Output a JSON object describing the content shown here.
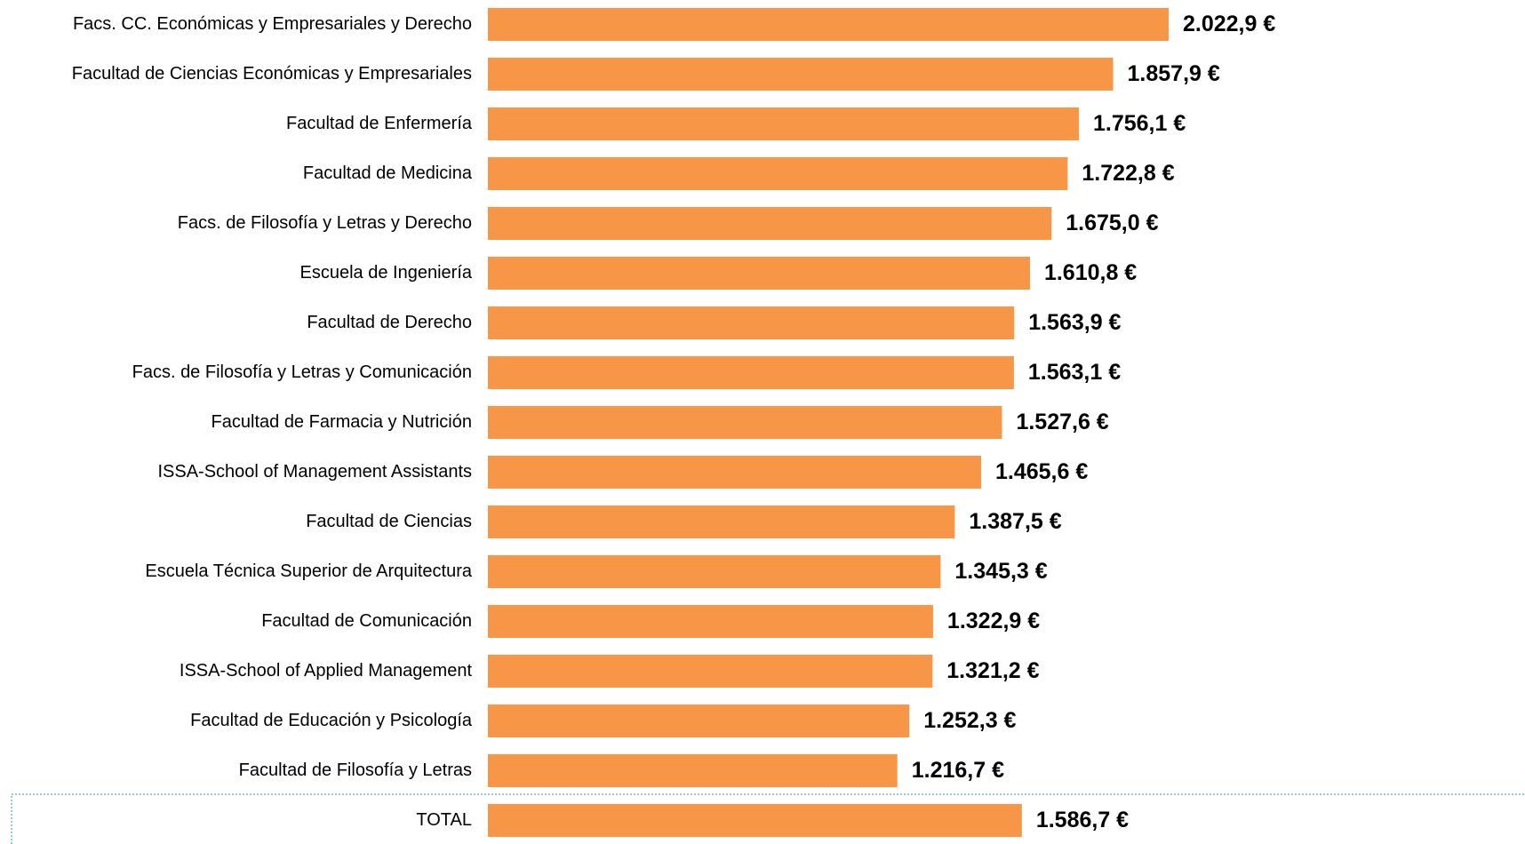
{
  "chart_data": {
    "type": "bar",
    "orientation": "horizontal",
    "color": "#f79646",
    "categories": [
      "Facs. CC. Económicas y Empresariales y Derecho",
      "Facultad de Ciencias Económicas y Empresariales",
      "Facultad de Enfermería",
      "Facultad de Medicina",
      "Facs. de Filosofía y Letras y Derecho",
      "Escuela de Ingeniería",
      "Facultad de Derecho",
      "Facs. de Filosofía y Letras y Comunicación",
      "Facultad de Farmacia y Nutrición",
      "ISSA-School of Management Assistants",
      "Facultad de Ciencias",
      "Escuela Técnica Superior de Arquitectura",
      "Facultad de Comunicación",
      "ISSA-School of Applied Management",
      "Facultad de Educación y Psicología",
      "Facultad de Filosofía y Letras",
      "TOTAL"
    ],
    "values": [
      2022.9,
      1857.9,
      1756.1,
      1722.8,
      1675.0,
      1610.8,
      1563.9,
      1563.1,
      1527.6,
      1465.6,
      1387.5,
      1345.3,
      1322.9,
      1321.2,
      1252.3,
      1216.7,
      1586.7
    ],
    "value_labels": [
      "2.022,9 €",
      "1.857,9 €",
      "1.756,1 €",
      "1.722,8 €",
      "1.675,0 €",
      "1.610,8 €",
      "1.563,9 €",
      "1.563,1 €",
      "1.527,6 €",
      "1.465,6 €",
      "1.387,5 €",
      "1.345,3 €",
      "1.322,9 €",
      "1.321,2 €",
      "1.252,3 €",
      "1.216,7 €",
      "1.586,7 €"
    ]
  }
}
